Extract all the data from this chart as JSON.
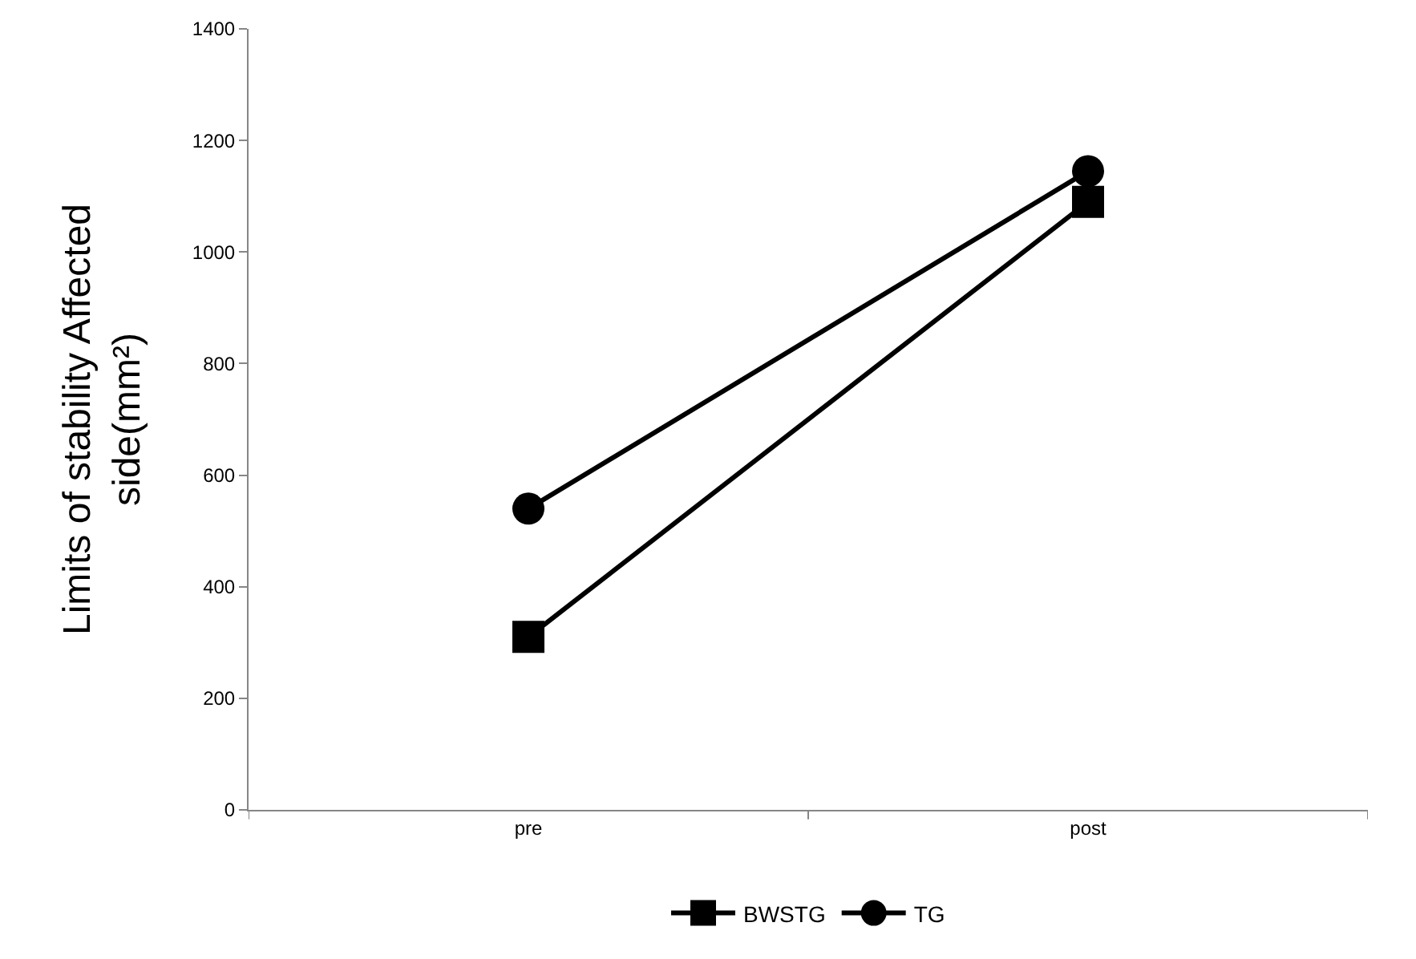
{
  "chart_data": {
    "type": "line",
    "ylabel": "Limits of stability Affected side(mm²)",
    "categories": [
      "pre",
      "post"
    ],
    "series": [
      {
        "name": "BWSTG",
        "color": "#000000",
        "values": [
          310,
          1090
        ],
        "marker": "square"
      },
      {
        "name": "TG",
        "color": "#000000",
        "values": [
          540,
          1145
        ],
        "marker": "circle"
      }
    ],
    "ylim": [
      0,
      1400
    ],
    "yticks": [
      0,
      200,
      400,
      600,
      800,
      1000,
      1200,
      1400
    ],
    "grid": false,
    "legend": "bottom",
    "line_style": "solid"
  }
}
